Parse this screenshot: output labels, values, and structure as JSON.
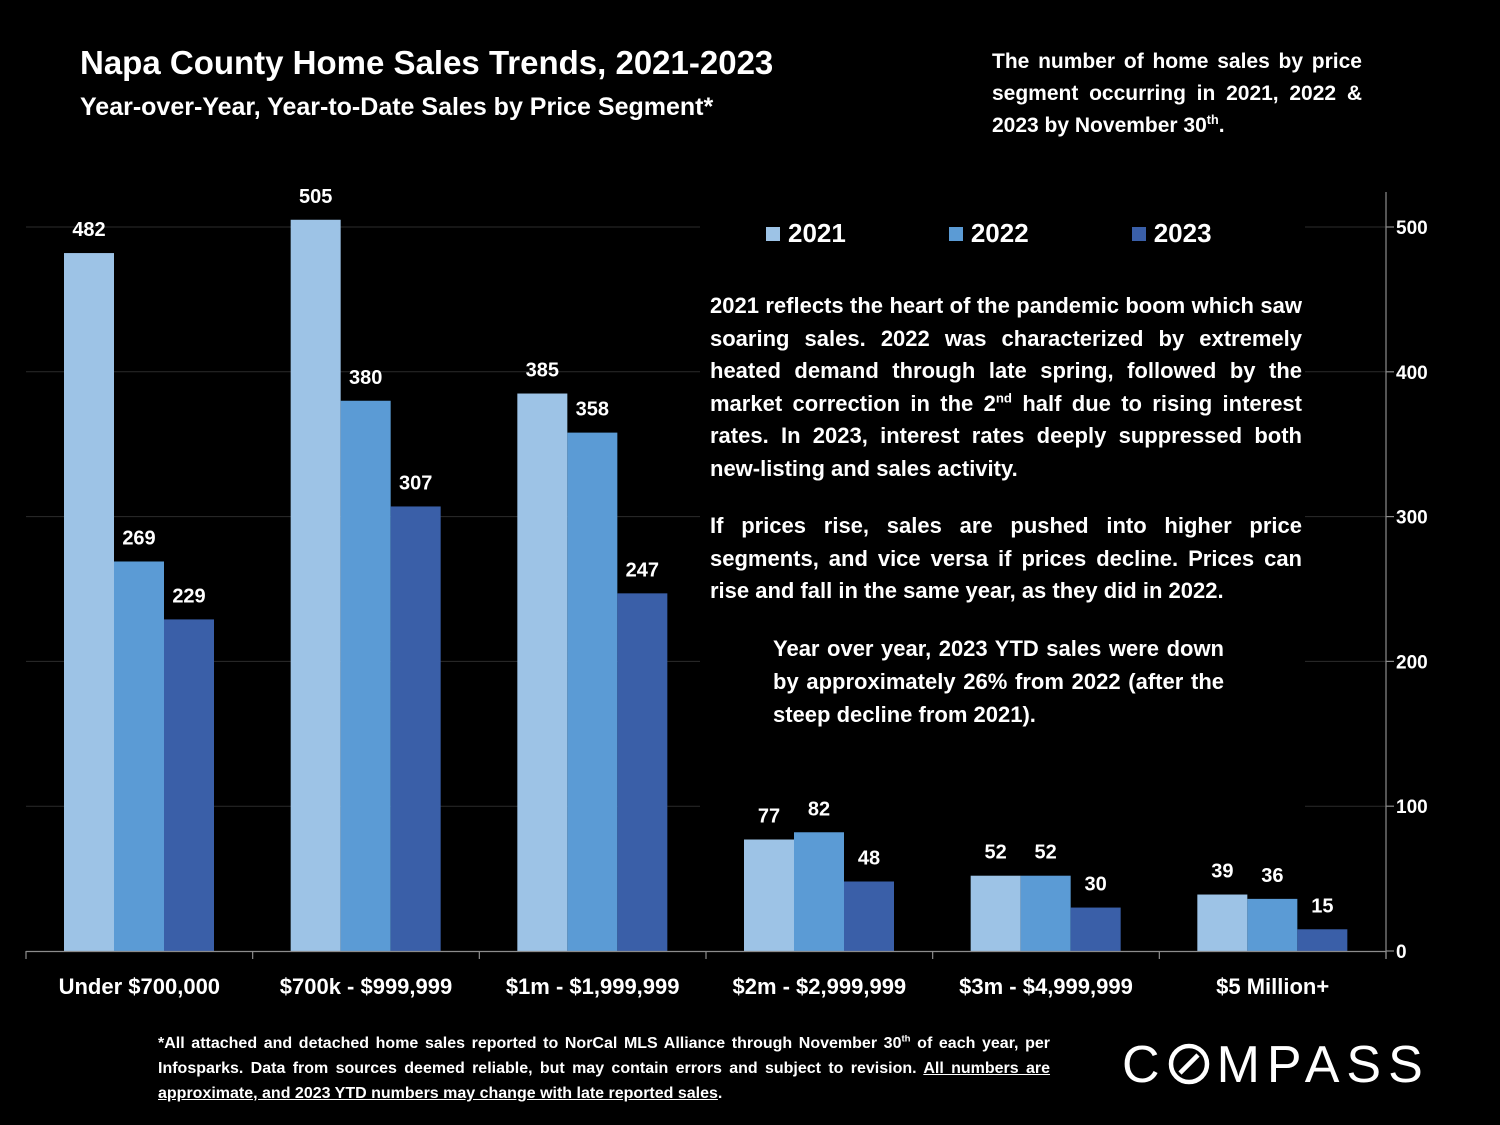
{
  "header": {
    "title": "Napa County Home Sales Trends, 2021-2023",
    "subtitle": "Year-over-Year, Year-to-Date Sales by Price Segment*",
    "note_text": "The number of home sales by price segment occurring in 2021, 2022 & 2023 by November 30",
    "note_sup": "th",
    "note_end": "."
  },
  "chart_data": {
    "type": "bar",
    "title": "Napa County Home Sales Trends, 2021-2023",
    "categories": [
      "Under $700,000",
      "$700k - $999,999",
      "$1m - $1,999,999",
      "$2m - $2,999,999",
      "$3m - $4,999,999",
      "$5 Million+"
    ],
    "series": [
      {
        "name": "2021",
        "color": "#9DC3E6",
        "values": [
          482,
          505,
          385,
          77,
          52,
          39
        ]
      },
      {
        "name": "2022",
        "color": "#5B9BD5",
        "values": [
          269,
          380,
          358,
          82,
          52,
          36
        ]
      },
      {
        "name": "2023",
        "color": "#3A5FA8",
        "values": [
          229,
          307,
          247,
          48,
          30,
          15
        ]
      }
    ],
    "yaxis_position": "right",
    "yticks": [
      0,
      100,
      200,
      300,
      400,
      500
    ],
    "ylim": [
      0,
      520
    ],
    "grid": true,
    "legend_position": "top-right"
  },
  "legend": {
    "items": [
      {
        "label": "2021",
        "color": "#9DC3E6"
      },
      {
        "label": "2022",
        "color": "#5B9BD5"
      },
      {
        "label": "2023",
        "color": "#3A5FA8"
      }
    ]
  },
  "commentary": {
    "para1_a": "2021 reflects the heart of the pandemic boom which saw soaring sales. 2022 was characterized by extremely heated demand through late spring, followed by the market correction in the 2",
    "para1_sup": "nd",
    "para1_b": " half due to rising interest rates. In 2023, interest rates deeply suppressed both new-listing and sales activity.",
    "para2": "If prices rise, sales are pushed into higher price segments, and vice versa if prices decline. Prices can rise and fall in the same year, as they did in 2022.",
    "para3": "Year over year, 2023 YTD sales were down by approximately 26% from 2022 (after the steep decline from 2021)."
  },
  "footnote": {
    "part1": "*All attached and detached home sales reported to NorCal MLS Alliance through November 30",
    "sup": "th",
    "part2": " of each year, per Infosparks. Data from sources deemed reliable, but may contain errors and subject to revision. ",
    "underlined": "All numbers are approximate, and 2023 YTD numbers may change with late reported sales",
    "end": "."
  },
  "logo": {
    "prefix": "C",
    "suffix": "MPASS"
  }
}
